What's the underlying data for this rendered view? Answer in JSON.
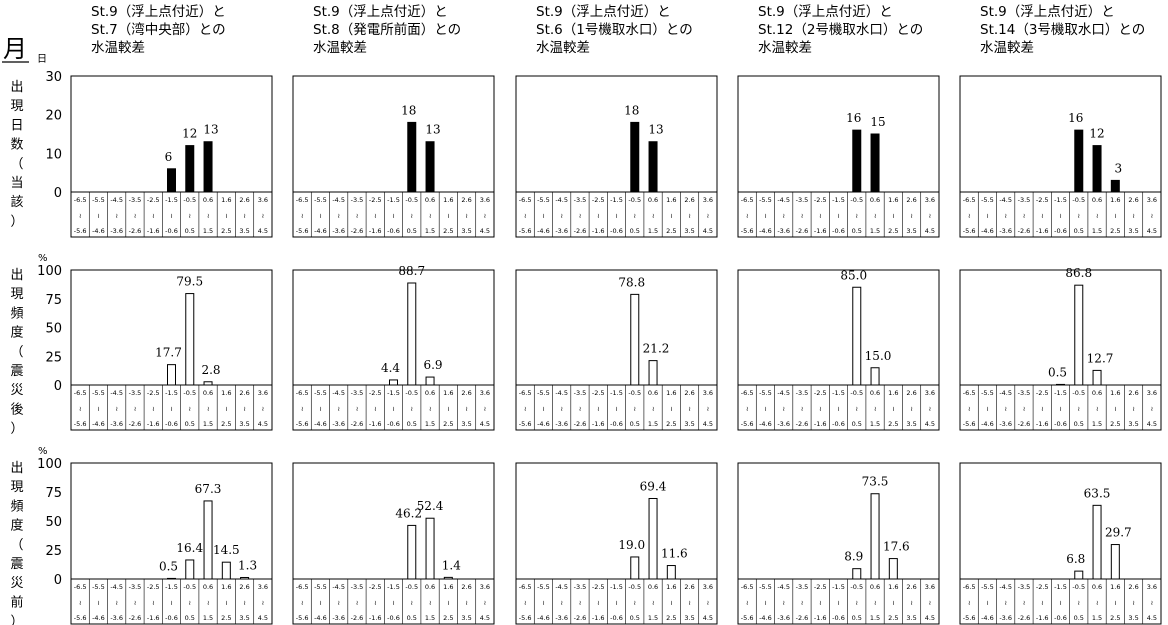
{
  "header": {
    "month_label": "月",
    "day_label": "日",
    "pct_label": "%"
  },
  "row_labels": [
    [
      "出",
      "現",
      "日",
      "数",
      "（",
      "当",
      "該",
      "）"
    ],
    [
      "出",
      "現",
      "頻",
      "度",
      "（",
      "震",
      "災",
      "後",
      "）"
    ],
    [
      "出",
      "現",
      "頻",
      "度",
      "（",
      "震",
      "災",
      "前",
      "）"
    ]
  ],
  "columns": [
    {
      "title": [
        "St.9（浮上点付近）と",
        "St.7（湾中央部）との",
        "水温較差"
      ]
    },
    {
      "title": [
        "St.9（浮上点付近）と",
        "St.8（発電所前面）との",
        "水温較差"
      ]
    },
    {
      "title": [
        "St.9（浮上点付近）と",
        "St.6（1号機取水口）との",
        "水温較差"
      ]
    },
    {
      "title": [
        "St.9（浮上点付近）と",
        "St.12（2号機取水口）との",
        "水温較差"
      ]
    },
    {
      "title": [
        "St.9（浮上点付近）と",
        "St.14（3号機取水口）との",
        "水温較差"
      ]
    }
  ],
  "bins": {
    "upper": [
      "-6.5",
      "-5.5",
      "-4.5",
      "-3.5",
      "-2.5",
      "-1.5",
      "-0.5",
      "0.6",
      "1.6",
      "2.6",
      "3.6"
    ],
    "tilde": "≀",
    "lower": [
      "-5.6",
      "-4.6",
      "-3.6",
      "-2.6",
      "-1.6",
      "-0.6",
      "0.5",
      "1.5",
      "2.5",
      "3.5",
      "4.5"
    ]
  },
  "chart_data": [
    {
      "type": "bar",
      "panel": "row1-col1",
      "ylim": [
        0,
        30
      ],
      "yticks": [
        "0",
        "10",
        "20",
        "30"
      ],
      "filled": true,
      "values": [
        0,
        0,
        0,
        0,
        0,
        6,
        12,
        13,
        0,
        0,
        0
      ],
      "labels": [
        "",
        "",
        "",
        "",
        "",
        "6",
        "12",
        "13",
        "",
        "",
        ""
      ]
    },
    {
      "type": "bar",
      "panel": "row1-col2",
      "ylim": [
        0,
        30
      ],
      "filled": true,
      "values": [
        0,
        0,
        0,
        0,
        0,
        0,
        18,
        13,
        0,
        0,
        0
      ],
      "labels": [
        "",
        "",
        "",
        "",
        "",
        "",
        "18",
        "13",
        "",
        "",
        ""
      ]
    },
    {
      "type": "bar",
      "panel": "row1-col3",
      "ylim": [
        0,
        30
      ],
      "filled": true,
      "values": [
        0,
        0,
        0,
        0,
        0,
        0,
        18,
        13,
        0,
        0,
        0
      ],
      "labels": [
        "",
        "",
        "",
        "",
        "",
        "",
        "18",
        "13",
        "",
        "",
        ""
      ]
    },
    {
      "type": "bar",
      "panel": "row1-col4",
      "ylim": [
        0,
        30
      ],
      "filled": true,
      "values": [
        0,
        0,
        0,
        0,
        0,
        0,
        16,
        15,
        0,
        0,
        0
      ],
      "labels": [
        "",
        "",
        "",
        "",
        "",
        "",
        "16",
        "15",
        "",
        "",
        ""
      ]
    },
    {
      "type": "bar",
      "panel": "row1-col5",
      "ylim": [
        0,
        30
      ],
      "filled": true,
      "values": [
        0,
        0,
        0,
        0,
        0,
        0,
        16,
        12,
        3,
        0,
        0
      ],
      "labels": [
        "",
        "",
        "",
        "",
        "",
        "",
        "16",
        "12",
        "3",
        "",
        ""
      ]
    },
    {
      "type": "bar",
      "panel": "row2-col1",
      "ylim": [
        0,
        100
      ],
      "yticks": [
        "0",
        "25",
        "50",
        "75",
        "100"
      ],
      "filled": false,
      "values": [
        0,
        0,
        0,
        0,
        0,
        17.7,
        79.5,
        2.8,
        0,
        0,
        0
      ],
      "labels": [
        "",
        "",
        "",
        "",
        "",
        "17.7",
        "79.5",
        "2.8",
        "",
        "",
        ""
      ]
    },
    {
      "type": "bar",
      "panel": "row2-col2",
      "ylim": [
        0,
        100
      ],
      "filled": false,
      "values": [
        0,
        0,
        0,
        0,
        0,
        4.4,
        88.7,
        6.9,
        0,
        0,
        0
      ],
      "labels": [
        "",
        "",
        "",
        "",
        "",
        "4.4",
        "88.7",
        "6.9",
        "",
        "",
        ""
      ]
    },
    {
      "type": "bar",
      "panel": "row2-col3",
      "ylim": [
        0,
        100
      ],
      "filled": false,
      "values": [
        0,
        0,
        0,
        0,
        0,
        0,
        78.8,
        21.2,
        0,
        0,
        0
      ],
      "labels": [
        "",
        "",
        "",
        "",
        "",
        "",
        "78.8",
        "21.2",
        "",
        "",
        ""
      ]
    },
    {
      "type": "bar",
      "panel": "row2-col4",
      "ylim": [
        0,
        100
      ],
      "filled": false,
      "values": [
        0,
        0,
        0,
        0,
        0,
        0,
        85.0,
        15.0,
        0,
        0,
        0
      ],
      "labels": [
        "",
        "",
        "",
        "",
        "",
        "",
        "85.0",
        "15.0",
        "",
        "",
        ""
      ]
    },
    {
      "type": "bar",
      "panel": "row2-col5",
      "ylim": [
        0,
        100
      ],
      "filled": false,
      "values": [
        0,
        0,
        0,
        0,
        0,
        0.5,
        86.8,
        12.7,
        0,
        0,
        0
      ],
      "labels": [
        "",
        "",
        "",
        "",
        "",
        "0.5",
        "86.8",
        "12.7",
        "",
        "",
        ""
      ]
    },
    {
      "type": "bar",
      "panel": "row3-col1",
      "ylim": [
        0,
        100
      ],
      "yticks": [
        "0",
        "25",
        "50",
        "75",
        "100"
      ],
      "filled": false,
      "values": [
        0,
        0,
        0,
        0,
        0,
        0.5,
        16.4,
        67.3,
        14.5,
        1.3,
        0
      ],
      "labels": [
        "",
        "",
        "",
        "",
        "",
        "0.5",
        "16.4",
        "67.3",
        "14.5",
        "1.3",
        ""
      ]
    },
    {
      "type": "bar",
      "panel": "row3-col2",
      "ylim": [
        0,
        100
      ],
      "filled": false,
      "values": [
        0,
        0,
        0,
        0,
        0,
        0,
        46.2,
        52.4,
        1.4,
        0,
        0
      ],
      "labels": [
        "",
        "",
        "",
        "",
        "",
        "",
        "46.2",
        "52.4",
        "1.4",
        "",
        ""
      ]
    },
    {
      "type": "bar",
      "panel": "row3-col3",
      "ylim": [
        0,
        100
      ],
      "filled": false,
      "values": [
        0,
        0,
        0,
        0,
        0,
        0,
        19.0,
        69.4,
        11.6,
        0,
        0
      ],
      "labels": [
        "",
        "",
        "",
        "",
        "",
        "",
        "19.0",
        "69.4",
        "11.6",
        "",
        ""
      ]
    },
    {
      "type": "bar",
      "panel": "row3-col4",
      "ylim": [
        0,
        100
      ],
      "filled": false,
      "values": [
        0,
        0,
        0,
        0,
        0,
        0,
        8.9,
        73.5,
        17.6,
        0,
        0
      ],
      "labels": [
        "",
        "",
        "",
        "",
        "",
        "",
        "8.9",
        "73.5",
        "17.6",
        "",
        ""
      ]
    },
    {
      "type": "bar",
      "panel": "row3-col5",
      "ylim": [
        0,
        100
      ],
      "filled": false,
      "values": [
        0,
        0,
        0,
        0,
        0,
        0,
        6.8,
        63.5,
        29.7,
        0,
        0
      ],
      "labels": [
        "",
        "",
        "",
        "",
        "",
        "",
        "6.8",
        "63.5",
        "29.7",
        "",
        ""
      ]
    }
  ]
}
